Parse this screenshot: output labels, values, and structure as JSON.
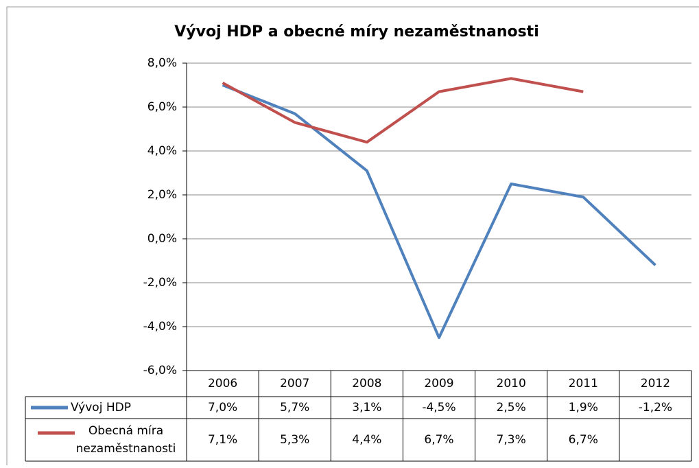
{
  "chart_data": {
    "type": "line",
    "title": "Vývoj HDP a obecné míry nezaměstnanosti",
    "categories": [
      "2006",
      "2007",
      "2008",
      "2009",
      "2010",
      "2011",
      "2012"
    ],
    "series": [
      {
        "name": "Vývoj HDP",
        "color": "#4f81bd",
        "values": [
          7.0,
          5.7,
          3.1,
          -4.5,
          2.5,
          1.9,
          -1.2
        ],
        "value_labels": [
          "7,0%",
          "5,7%",
          "3,1%",
          "-4,5%",
          "2,5%",
          "1,9%",
          "-1,2%"
        ]
      },
      {
        "name": "Obecná míra nezaměstnanosti",
        "color": "#c0504d",
        "values": [
          7.1,
          5.3,
          4.4,
          6.7,
          7.3,
          6.7,
          null
        ],
        "value_labels": [
          "7,1%",
          "5,3%",
          "4,4%",
          "6,7%",
          "7,3%",
          "6,7%",
          null
        ]
      }
    ],
    "ylim": [
      -6,
      8
    ],
    "yticks": [
      {
        "value": -6,
        "label": "-6,0%"
      },
      {
        "value": -4,
        "label": "-4,0%"
      },
      {
        "value": -2,
        "label": "-2,0%"
      },
      {
        "value": 0,
        "label": "0,0%"
      },
      {
        "value": 2,
        "label": "2,0%"
      },
      {
        "value": 4,
        "label": "4,0%"
      },
      {
        "value": 6,
        "label": "6,0%"
      },
      {
        "value": 8,
        "label": "8,0%"
      }
    ],
    "grid": true
  }
}
